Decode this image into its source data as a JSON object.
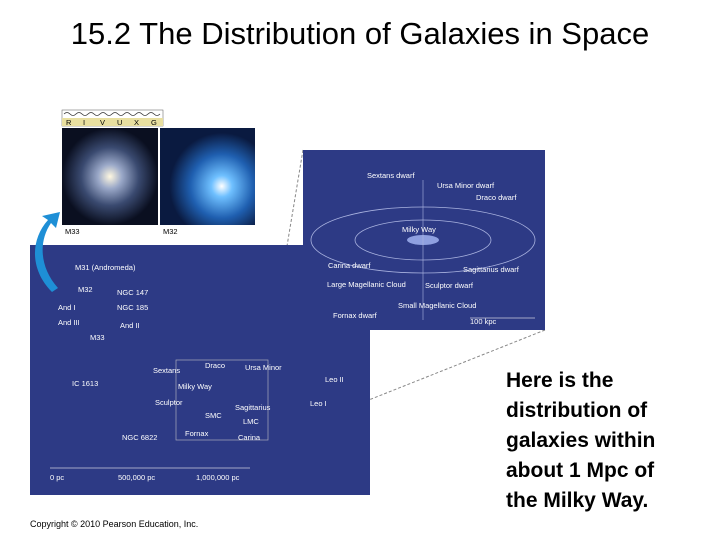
{
  "title": "15.2 The Distribution of Galaxies in Space",
  "figure": {
    "spectrum": [
      "R",
      "I",
      "V",
      "U",
      "X",
      "G"
    ],
    "photos": [
      "M33",
      "M32"
    ],
    "inset_labels": [
      "Sextans dwarf",
      "Ursa Minor dwarf",
      "Draco dwarf",
      "Milky Way",
      "Carina dwarf",
      "Large Magellanic Cloud",
      "Sculptor dwarf",
      "Sagittarius dwarf",
      "Small Magellanic Cloud",
      "Fornax dwarf",
      "100 kpc"
    ],
    "map_labels": [
      "M31 (Andromeda)",
      "M32",
      "NGC 147",
      "NGC 185",
      "And I",
      "And III",
      "And II",
      "M33",
      "IC 1613",
      "NGC 6822",
      "Draco",
      "Ursa Minor",
      "Sextans",
      "Milky Way",
      "Sculptor",
      "Sagittarius",
      "SMC",
      "LMC",
      "Fornax",
      "Carina",
      "Leo II",
      "Leo I"
    ],
    "scale": [
      "0 pc",
      "500,000 pc",
      "1,000,000 pc"
    ]
  },
  "body": [
    "Here is the",
    "distribution of",
    "galaxies within",
    "about 1 Mpc of",
    "the Milky Way."
  ],
  "copyright": "Copyright © 2010 Pearson Education, Inc."
}
